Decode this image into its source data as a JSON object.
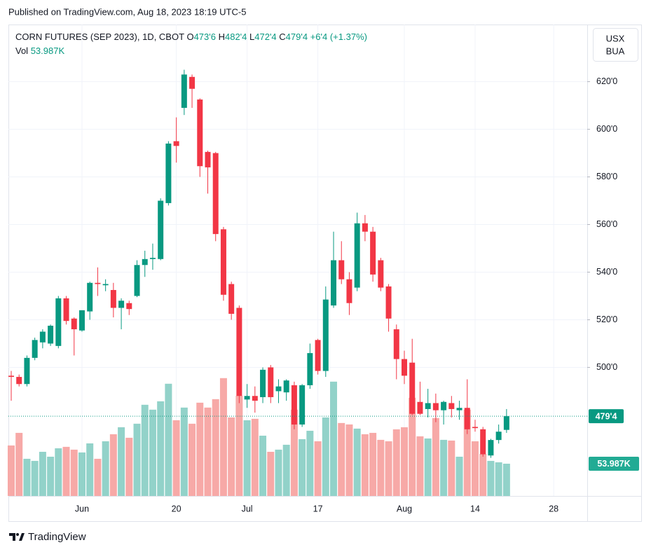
{
  "published": "Published on TradingView.com, Aug 18, 2023 18:19 UTC-5",
  "footer": {
    "brand": "TradingView"
  },
  "chart_data": {
    "type": "candlestick",
    "title": "CORN FUTURES (SEP 2023), 1D, CBOT",
    "legend_keys": [
      "O",
      "H",
      "L",
      "C"
    ],
    "ohlc_labels": {
      "open": "473'6",
      "high": "482'4",
      "low": "472'4",
      "close": "479'4"
    },
    "change_label": "+6'4 (+1.37%)",
    "volume_name": "Vol",
    "volume_label": "53.987K",
    "currency": [
      "USX",
      "BUA"
    ],
    "categories": [
      null,
      null,
      null,
      null,
      null,
      null,
      null,
      null,
      null,
      "Jun",
      null,
      null,
      null,
      null,
      null,
      null,
      null,
      null,
      null,
      null,
      null,
      "20",
      null,
      null,
      null,
      null,
      null,
      null,
      null,
      null,
      "Jul",
      null,
      null,
      null,
      null,
      null,
      null,
      null,
      null,
      "17",
      null,
      null,
      null,
      null,
      null,
      null,
      null,
      null,
      null,
      null,
      "Aug",
      null,
      null,
      null,
      null,
      null,
      null,
      null,
      null,
      "14",
      null,
      null,
      null,
      null,
      null,
      null,
      null,
      null,
      null,
      "28"
    ],
    "open": [
      496.5,
      496,
      493,
      504,
      510.5,
      510,
      509,
      529,
      520.5,
      515.5,
      523.5,
      535.5,
      534.5,
      532.5,
      525,
      527,
      530,
      543,
      545.5,
      545.5,
      569,
      595,
      609,
      622,
      612.5,
      590.5,
      590,
      558,
      535,
      525,
      486.5,
      488,
      487.5,
      500,
      490,
      489.5,
      492.5,
      476,
      492.5,
      511.5,
      498.5,
      526,
      545,
      537,
      533.5,
      560.5,
      557,
      545,
      534,
      516,
      503.5,
      502,
      485.5,
      482.5,
      485,
      482,
      485,
      482,
      483,
      475,
      474,
      463,
      469.5,
      473.75,
      null,
      null,
      null,
      null,
      null,
      null
    ],
    "high": [
      498.5,
      497,
      505,
      512.5,
      516,
      518,
      530,
      530,
      521,
      524,
      536,
      542,
      537,
      535.5,
      529,
      528,
      545,
      549,
      552,
      571,
      595,
      605,
      625,
      623,
      613,
      591,
      590.5,
      559,
      536,
      526,
      493,
      492,
      500,
      501,
      495,
      495,
      494,
      493,
      510,
      512,
      534,
      557,
      553,
      540,
      565,
      564,
      559,
      546,
      535,
      518,
      507,
      512,
      494,
      491,
      489,
      486,
      488,
      486,
      495,
      478,
      475,
      470,
      476,
      482.5,
      null,
      null,
      null,
      null,
      null,
      null
    ],
    "low": [
      486,
      492,
      492,
      503,
      508,
      509,
      508,
      518,
      505,
      515,
      520,
      530,
      532,
      521,
      516,
      522,
      529.5,
      538,
      541,
      545,
      568,
      586,
      606,
      609,
      580,
      573,
      553,
      528,
      520,
      485,
      483,
      481,
      485,
      485,
      485,
      486,
      474,
      475,
      491,
      497,
      496,
      525,
      535,
      522,
      532,
      553,
      536,
      532,
      515,
      495,
      493,
      480,
      480,
      479,
      477,
      476,
      479,
      478,
      472,
      473,
      462.5,
      462,
      468,
      472.5,
      null,
      null,
      null,
      null,
      null,
      null
    ],
    "close": [
      496,
      493,
      504,
      511.5,
      515,
      517.5,
      529,
      519.5,
      516,
      524,
      535.5,
      535,
      535,
      525,
      528,
      524.5,
      543,
      545.5,
      546,
      570,
      594,
      593,
      623,
      617,
      584.5,
      584,
      556,
      530.5,
      522.5,
      488,
      488,
      486,
      499,
      487.5,
      492,
      494.5,
      476,
      492.5,
      506,
      498.5,
      528.5,
      545,
      537,
      527,
      560.5,
      557,
      539,
      533.5,
      520.5,
      503.5,
      496.5,
      480.5,
      480.5,
      485,
      482,
      485.5,
      482.5,
      483,
      474,
      474.5,
      463.5,
      469.5,
      473,
      479.5,
      null,
      null,
      null,
      null,
      null,
      null
    ],
    "volume": [
      84500,
      105600,
      62200,
      58700,
      73900,
      65700,
      79800,
      82200,
      77500,
      72800,
      88000,
      62200,
      91500,
      103300,
      115000,
      97400,
      120900,
      152600,
      144400,
      158400,
      187800,
      126700,
      147900,
      120900,
      156100,
      147900,
      162000,
      197200,
      131400,
      167800,
      126700,
      129100,
      100900,
      73900,
      77500,
      85700,
      144400,
      95100,
      109100,
      91500,
      131400,
      191300,
      122100,
      119700,
      112700,
      103300,
      105600,
      93900,
      91500,
      111500,
      115000,
      164300,
      99800,
      96200,
      130300,
      93900,
      92700,
      65700,
      144400,
      91500,
      70400,
      58700,
      56300,
      53987,
      null,
      null,
      null,
      null,
      null,
      null
    ],
    "ylim": [
      446,
      644
    ],
    "yticks": [
      {
        "value": 500,
        "label": "500'0"
      },
      {
        "value": 520,
        "label": "520'0"
      },
      {
        "value": 540,
        "label": "540'0"
      },
      {
        "value": 560,
        "label": "560'0"
      },
      {
        "value": 580,
        "label": "580'0"
      },
      {
        "value": 600,
        "label": "600'0"
      },
      {
        "value": 620,
        "label": "620'0"
      }
    ],
    "volume_ylim": [
      0,
      400000
    ],
    "grid": true,
    "up_color": "#089981",
    "down_color": "#f23645",
    "volume_up_color": "#92d2c9",
    "volume_down_color": "#f7a9a7"
  }
}
